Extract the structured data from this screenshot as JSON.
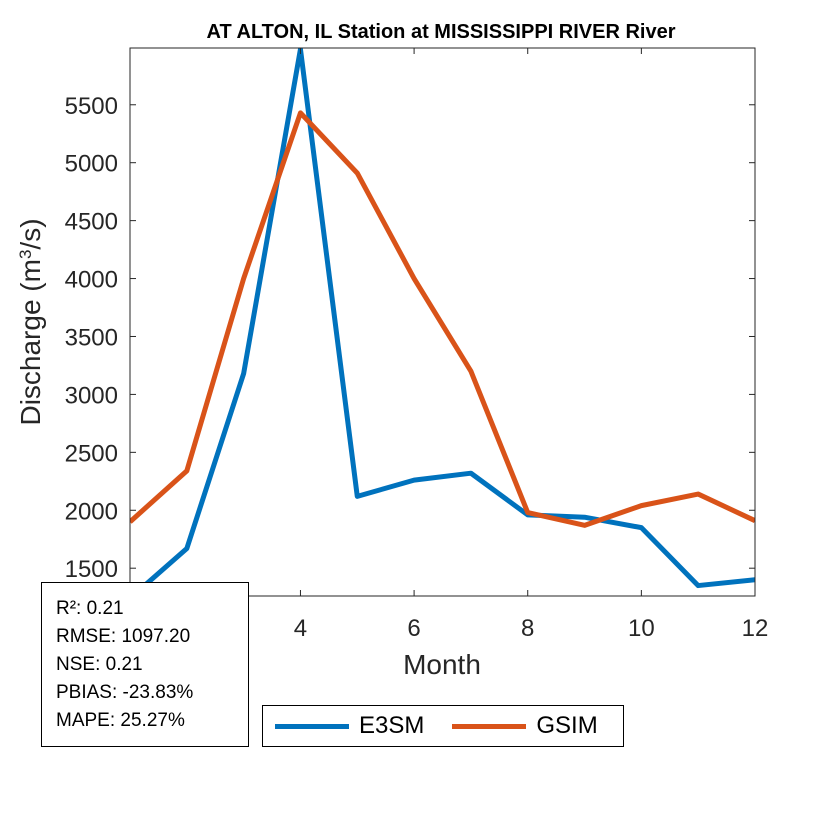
{
  "chart_data": {
    "type": "line",
    "title": "AT ALTON, IL  Station at  MISSISSIPPI RIVER  River",
    "xlabel": "Month",
    "ylabel": "Discharge (m³/s)",
    "ylabel_base": "Discharge (m",
    "ylabel_sup": "3",
    "ylabel_tail": "/s)",
    "xlim": [
      1,
      12
    ],
    "ylim": [
      1260,
      5990
    ],
    "x_ticks": [
      4,
      6,
      8,
      10,
      12
    ],
    "x_tick_labels": [
      "4",
      "6",
      "8",
      "10",
      "12"
    ],
    "y_ticks": [
      1500,
      2000,
      2500,
      3000,
      3500,
      4000,
      4500,
      5000,
      5500
    ],
    "y_tick_labels": [
      "1500",
      "2000",
      "2500",
      "3000",
      "3500",
      "4000",
      "4500",
      "5000",
      "5500"
    ],
    "grid": false,
    "legend_position": "bottom-center",
    "x": [
      1,
      2,
      3,
      4,
      5,
      6,
      7,
      8,
      9,
      10,
      11,
      12
    ],
    "series": [
      {
        "name": "E3SM",
        "color": "#0072BD",
        "values": [
          1240,
          1670,
          3180,
          5980,
          2120,
          2260,
          2320,
          1960,
          1940,
          1850,
          1350,
          1400
        ]
      },
      {
        "name": "GSIM",
        "color": "#D95319",
        "values": [
          1900,
          2340,
          4000,
          5430,
          4910,
          4000,
          3200,
          1980,
          1870,
          2040,
          2140,
          1910
        ]
      }
    ]
  },
  "stats": {
    "lines": [
      "R²: 0.21",
      "RMSE: 1097.20",
      "NSE: 0.21",
      "PBIAS: -23.83%",
      "MAPE: 25.27%"
    ]
  },
  "legend": {
    "items": [
      {
        "label": "E3SM",
        "color": "#0072BD"
      },
      {
        "label": "GSIM",
        "color": "#D95319"
      }
    ]
  }
}
